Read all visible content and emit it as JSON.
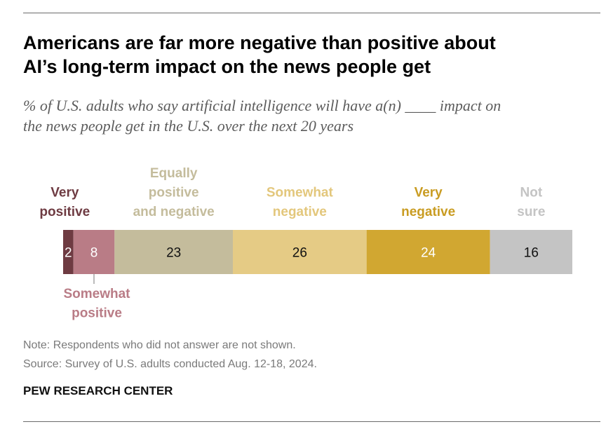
{
  "header": {
    "title_lines": [
      "Americans are far more negative than positive about",
      "AI’s long-term impact on the news people get"
    ],
    "subtitle_lines": [
      "% of U.S. adults who say artificial intelligence will have a(n) ____ impact on",
      "the news people get in the U.S. over the next 20 years"
    ]
  },
  "chart_data": {
    "type": "bar",
    "orientation": "horizontal-stacked",
    "title": "Americans are far more negative than positive about AI’s long-term impact on the news people get",
    "subtitle": "% of U.S. adults who say artificial intelligence will have a(n) ____ impact on the news people get in the U.S. over the next 20 years",
    "xlabel": "",
    "ylabel": "",
    "xlim": [
      0,
      99
    ],
    "grid": false,
    "legend": "labels above and below bar",
    "series": [
      {
        "name": "Very positive",
        "label_lines": [
          "Very",
          "positive"
        ],
        "value": 2,
        "display": "2",
        "color": "#6e3b42",
        "label_color": "#6e3b42",
        "text_color": "#ffffff",
        "label_position": "above"
      },
      {
        "name": "Somewhat positive",
        "label_lines": [
          "Somewhat",
          "positive"
        ],
        "value": 8,
        "display": "8",
        "color": "#b97c86",
        "label_color": "#b97c86",
        "text_color": "#ffffff",
        "label_position": "below"
      },
      {
        "name": "Equally positive and negative",
        "label_lines": [
          "Equally",
          "positive",
          "and negative"
        ],
        "value": 23,
        "display": "23",
        "color": "#c4bc9c",
        "label_color": "#c4bc9c",
        "text_color": "#111111",
        "label_position": "above"
      },
      {
        "name": "Somewhat negative",
        "label_lines": [
          "Somewhat",
          "negative"
        ],
        "value": 26,
        "display": "26",
        "color": "#e5cb85",
        "label_color": "#e3c77c",
        "text_color": "#111111",
        "label_position": "above"
      },
      {
        "name": "Very negative",
        "label_lines": [
          "Very",
          "negative"
        ],
        "value": 24,
        "display": "24",
        "color": "#d1a731",
        "label_color": "#c99c22",
        "text_color": "#ffffff",
        "label_position": "above"
      },
      {
        "name": "Not sure",
        "label_lines": [
          "Not",
          "sure"
        ],
        "value": 16,
        "display": "16",
        "color": "#c4c4c4",
        "label_color": "#c4c4c4",
        "text_color": "#111111",
        "label_position": "above"
      }
    ]
  },
  "footer": {
    "note": "Note: Respondents who did not answer are not shown.",
    "source": "Source: Survey of U.S. adults conducted Aug. 12-18, 2024.",
    "brand": "PEW RESEARCH CENTER"
  }
}
